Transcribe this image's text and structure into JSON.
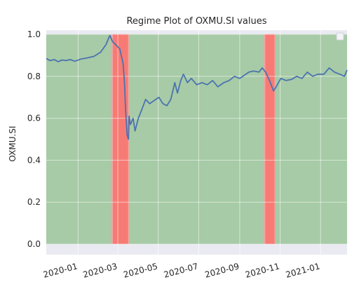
{
  "chart_data": {
    "type": "line",
    "title": "Regime Plot of OXMU.SI values",
    "xlabel": "",
    "ylabel": "OXMU.SI",
    "ylim": [
      -0.05,
      1.02
    ],
    "xlim": [
      "2019-11-14",
      "2021-02-10"
    ],
    "grid": true,
    "legend": "top-right (empty)",
    "x_ticks": [
      "2020-01",
      "2020-03",
      "2020-05",
      "2020-07",
      "2020-09",
      "2020-11",
      "2021-01"
    ],
    "x_tick_dates": [
      "2020-01-01",
      "2020-03-01",
      "2020-05-01",
      "2020-07-01",
      "2020-09-01",
      "2020-11-01",
      "2021-01-01"
    ],
    "y_ticks": [
      0.0,
      0.2,
      0.4,
      0.6,
      0.8,
      1.0
    ],
    "regime_colors": {
      "normal": "#a6cba6",
      "stress": "#f77b74",
      "edge": "#e8a8a2"
    },
    "line_color": "#4c72b0",
    "regimes": [
      {
        "start": "2019-11-14",
        "end": "2020-02-21",
        "regime": "normal"
      },
      {
        "start": "2020-02-21",
        "end": "2020-03-18",
        "regime": "stress"
      },
      {
        "start": "2020-03-18",
        "end": "2020-10-08",
        "regime": "normal"
      },
      {
        "start": "2020-10-08",
        "end": "2020-10-25",
        "regime": "stress"
      },
      {
        "start": "2020-10-25",
        "end": "2021-02-10",
        "regime": "normal"
      }
    ],
    "series": [
      {
        "x": [
          "2019-11-14",
          "2019-11-20",
          "2019-11-26",
          "2019-12-02",
          "2019-12-08",
          "2019-12-14",
          "2019-12-20",
          "2019-12-27",
          "2020-01-05",
          "2020-01-15",
          "2020-01-25",
          "2020-02-04",
          "2020-02-12",
          "2020-02-18",
          "2020-02-22",
          "2020-02-27",
          "2020-03-04",
          "2020-03-09",
          "2020-03-11",
          "2020-03-13",
          "2020-03-15",
          "2020-03-17",
          "2020-03-18",
          "2020-03-20",
          "2020-03-24",
          "2020-03-27",
          "2020-04-01",
          "2020-04-06",
          "2020-04-12",
          "2020-04-18",
          "2020-04-25",
          "2020-05-02",
          "2020-05-08",
          "2020-05-14",
          "2020-05-20",
          "2020-05-26",
          "2020-05-30",
          "2020-06-04",
          "2020-06-08",
          "2020-06-14",
          "2020-06-20",
          "2020-06-28",
          "2020-07-06",
          "2020-07-14",
          "2020-07-22",
          "2020-07-30",
          "2020-08-08",
          "2020-08-16",
          "2020-08-24",
          "2020-09-01",
          "2020-09-08",
          "2020-09-15",
          "2020-09-22",
          "2020-09-30",
          "2020-10-05",
          "2020-10-10",
          "2020-10-16",
          "2020-10-22",
          "2020-10-26",
          "2020-11-02",
          "2020-11-10",
          "2020-11-18",
          "2020-11-26",
          "2020-12-04",
          "2020-12-12",
          "2020-12-20",
          "2020-12-28",
          "2021-01-06",
          "2021-01-14",
          "2021-01-22",
          "2021-01-30",
          "2021-02-06",
          "2021-02-10"
        ],
        "values": [
          0.885,
          0.875,
          0.88,
          0.87,
          0.878,
          0.875,
          0.88,
          0.872,
          0.882,
          0.888,
          0.895,
          0.915,
          0.95,
          0.995,
          0.965,
          0.95,
          0.93,
          0.86,
          0.77,
          0.62,
          0.52,
          0.5,
          0.61,
          0.57,
          0.6,
          0.54,
          0.6,
          0.64,
          0.69,
          0.67,
          0.685,
          0.7,
          0.67,
          0.66,
          0.69,
          0.77,
          0.72,
          0.78,
          0.81,
          0.77,
          0.79,
          0.76,
          0.77,
          0.76,
          0.78,
          0.75,
          0.77,
          0.78,
          0.8,
          0.79,
          0.805,
          0.82,
          0.825,
          0.82,
          0.84,
          0.82,
          0.78,
          0.73,
          0.75,
          0.79,
          0.78,
          0.785,
          0.8,
          0.79,
          0.82,
          0.8,
          0.81,
          0.81,
          0.84,
          0.82,
          0.81,
          0.8,
          0.83
        ]
      }
    ]
  }
}
